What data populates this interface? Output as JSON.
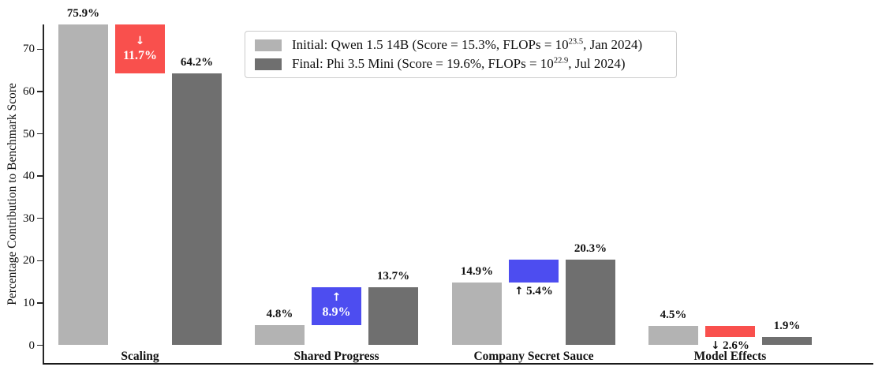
{
  "chart": {
    "ylabel": "Percentage Contribution to Benchmark Score"
  },
  "legend": {
    "items": [
      {
        "series": "initial",
        "prefix": "Initial: Qwen 1.5 14B (Score = 15.3%, FLOPs = 10",
        "exponent": "23.5",
        "suffix": ", Jan 2024)"
      },
      {
        "series": "final",
        "prefix": "Final: Phi 3.5 Mini (Score = 19.6%, FLOPs = 10",
        "exponent": "22.9",
        "suffix": ", Jul 2024)"
      }
    ]
  },
  "chart_data": {
    "type": "bar",
    "title": "",
    "xlabel": "",
    "ylabel": "Percentage Contribution to Benchmark Score",
    "ylim": [
      0,
      78
    ],
    "yticks": [
      0,
      10,
      20,
      30,
      40,
      50,
      60,
      70
    ],
    "grid": false,
    "legend_position": "upper center",
    "categories": [
      "Scaling",
      "Shared Progress",
      "Company Secret Sauce",
      "Model Effects"
    ],
    "series": [
      {
        "name": "initial",
        "values": [
          75.9,
          4.8,
          14.9,
          4.5
        ]
      },
      {
        "name": "change",
        "values": [
          -11.7,
          8.9,
          5.4,
          -2.6
        ]
      },
      {
        "name": "final",
        "values": [
          64.2,
          13.7,
          20.3,
          1.9
        ]
      }
    ],
    "value_labels": {
      "initial": [
        "75.9%",
        "4.8%",
        "14.9%",
        "4.5%"
      ],
      "final": [
        "64.2%",
        "13.7%",
        "20.3%",
        "1.9%"
      ]
    },
    "change_labels": [
      {
        "arrow": "↓",
        "text": "11.7%",
        "placement": "inside"
      },
      {
        "arrow": "↑",
        "text": "8.9%",
        "placement": "inside"
      },
      {
        "arrow": "↑",
        "text": "5.4%",
        "placement": "below"
      },
      {
        "arrow": "↓",
        "text": "2.6%",
        "placement": "below"
      }
    ],
    "colors": {
      "initial": "#b3b3b3",
      "final": "#6f6f6f",
      "increase": "#4d4df0",
      "decrease": "#f9504d",
      "inside_label_text": "#ffffff",
      "axis": "#262626"
    }
  }
}
